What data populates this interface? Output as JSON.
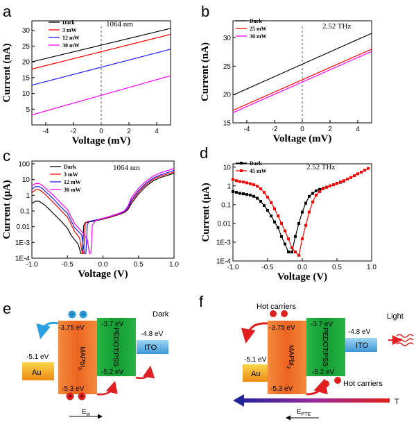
{
  "colors": {
    "Dark": "#000000",
    "3 mW": "#ff0000",
    "12 mW": "#1a1aff",
    "30 mW": "#ff00ff",
    "25 mW": "#ff0000",
    "45 mW": "#ff0000",
    "mapbi": "#ee6a2a",
    "pedot": "#1aaa3a",
    "ito": "#4aa8dc",
    "au": "#f3a71c",
    "arrow_red": "#e02020",
    "arrow_blue": "#2aa0e0",
    "ept_start": "#2020a0",
    "ept_end": "#e0201a"
  },
  "chart_data": [
    {
      "id": "a",
      "panel_label": "a",
      "type": "line",
      "xlabel": "Voltage (mV)",
      "ylabel": "Current (nA)",
      "xlim": [
        -5,
        5
      ],
      "ylim": [
        0,
        33
      ],
      "xticks": [
        -4,
        -2,
        0,
        2,
        4
      ],
      "yticks": [
        5,
        10,
        15,
        20,
        25,
        30
      ],
      "ytick_labels": [
        "5",
        "10",
        "15",
        "20",
        "25",
        "30"
      ],
      "annotation": "1064 nm",
      "dashed_zero": true,
      "series": [
        {
          "name": "Dark",
          "x": [
            -5,
            5
          ],
          "y": [
            20.0,
            30.6
          ]
        },
        {
          "name": "3 mW",
          "x": [
            -5,
            5
          ],
          "y": [
            17.7,
            28.7
          ]
        },
        {
          "name": "12 mW",
          "x": [
            -5,
            5
          ],
          "y": [
            12.6,
            24.0
          ]
        },
        {
          "name": "30 mW",
          "x": [
            -5,
            5
          ],
          "y": [
            3.2,
            15.6
          ]
        }
      ]
    },
    {
      "id": "b",
      "panel_label": "b",
      "type": "line",
      "xlabel": "Voltage (mV)",
      "ylabel": "Current (nA)",
      "xlim": [
        -5,
        5
      ],
      "ylim": [
        15,
        33
      ],
      "xticks": [
        -4,
        -2,
        0,
        2,
        4
      ],
      "yticks": [
        15,
        20,
        25,
        30
      ],
      "ytick_labels": [
        "15",
        "20",
        "25",
        "30"
      ],
      "annotation": "2.52 THz",
      "dashed_zero": true,
      "series": [
        {
          "name": "Dark",
          "x": [
            -5,
            5
          ],
          "y": [
            19.9,
            30.8
          ]
        },
        {
          "name": "25 mW",
          "x": [
            -5,
            5
          ],
          "y": [
            17.2,
            28.0
          ]
        },
        {
          "name": "30 mW",
          "x": [
            -5,
            5
          ],
          "y": [
            16.8,
            27.6
          ]
        }
      ]
    },
    {
      "id": "c",
      "panel_label": "c",
      "type": "line",
      "yscale": "log",
      "xlabel": "Voltage (V)",
      "ylabel": "Current (μA)",
      "xlim": [
        -1.0,
        1.0
      ],
      "ylim": [
        0.0001,
        150
      ],
      "xticks": [
        -1.0,
        -0.5,
        0.0,
        0.5,
        1.0
      ],
      "xtick_labels": [
        "-1.0",
        "-0.5",
        "0.0",
        "0.5",
        "1.0"
      ],
      "yticks": [
        0.0001,
        0.001,
        0.01,
        0.1,
        1,
        10,
        100
      ],
      "ytick_labels": [
        "1E-4",
        "1E-3",
        "0.01",
        "0.1",
        "1",
        "10",
        "100"
      ],
      "annotation": "1064 nm",
      "series": [
        {
          "name": "Dark",
          "x": [
            -1.0,
            -0.95,
            -0.9,
            -0.85,
            -0.8,
            -0.75,
            -0.7,
            -0.6,
            -0.5,
            -0.45,
            -0.4,
            -0.35,
            -0.31,
            -0.29,
            -0.27,
            -0.25,
            -0.2,
            -0.1,
            0.0,
            0.1,
            0.2,
            0.3,
            0.35,
            0.4,
            0.5,
            0.6,
            0.7,
            0.8,
            0.9,
            1.0
          ],
          "y": [
            0.3,
            0.42,
            0.42,
            0.3,
            0.2,
            0.12,
            0.07,
            0.025,
            0.008,
            0.003,
            0.0015,
            0.0008,
            0.0002,
            0.0002,
            0.012,
            0.018,
            0.02,
            0.024,
            0.03,
            0.04,
            0.055,
            0.08,
            0.12,
            0.3,
            1.2,
            3.5,
            8,
            13,
            18,
            25
          ]
        },
        {
          "name": "3 mW",
          "x": [
            -1.0,
            -0.95,
            -0.9,
            -0.85,
            -0.8,
            -0.75,
            -0.7,
            -0.6,
            -0.5,
            -0.45,
            -0.4,
            -0.33,
            -0.29,
            -0.27,
            -0.25,
            -0.23,
            -0.2,
            -0.1,
            0.0,
            0.1,
            0.2,
            0.3,
            0.35,
            0.4,
            0.5,
            0.6,
            0.7,
            0.8,
            0.9,
            1.0
          ],
          "y": [
            1.5,
            2.2,
            2.3,
            1.6,
            1.0,
            0.6,
            0.35,
            0.12,
            0.04,
            0.015,
            0.005,
            0.002,
            0.0002,
            0.0002,
            0.015,
            0.02,
            0.022,
            0.026,
            0.032,
            0.042,
            0.058,
            0.085,
            0.14,
            0.4,
            1.6,
            4.5,
            10,
            16,
            22,
            30
          ]
        },
        {
          "name": "12 mW",
          "x": [
            -1.0,
            -0.95,
            -0.9,
            -0.85,
            -0.8,
            -0.75,
            -0.7,
            -0.6,
            -0.5,
            -0.45,
            -0.4,
            -0.3,
            -0.26,
            -0.24,
            -0.22,
            -0.2,
            -0.15,
            -0.1,
            0.0,
            0.1,
            0.2,
            0.3,
            0.35,
            0.4,
            0.5,
            0.6,
            0.7,
            0.8,
            0.9,
            1.0
          ],
          "y": [
            2.5,
            3.5,
            3.6,
            2.6,
            1.6,
            1.0,
            0.6,
            0.2,
            0.07,
            0.025,
            0.009,
            0.003,
            0.0002,
            0.0002,
            0.014,
            0.02,
            0.024,
            0.027,
            0.034,
            0.045,
            0.062,
            0.09,
            0.16,
            0.5,
            2.0,
            5.5,
            12,
            19,
            27,
            38
          ]
        },
        {
          "name": "30 mW",
          "x": [
            -1.0,
            -0.95,
            -0.9,
            -0.85,
            -0.8,
            -0.75,
            -0.7,
            -0.6,
            -0.5,
            -0.45,
            -0.4,
            -0.3,
            -0.22,
            -0.19,
            -0.17,
            -0.15,
            -0.12,
            -0.1,
            0.0,
            0.1,
            0.2,
            0.3,
            0.35,
            0.4,
            0.5,
            0.6,
            0.7,
            0.8,
            0.9,
            1.0
          ],
          "y": [
            4.0,
            5.5,
            5.6,
            4.2,
            2.6,
            1.6,
            1.0,
            0.35,
            0.12,
            0.045,
            0.016,
            0.005,
            0.0015,
            0.0002,
            0.0002,
            0.012,
            0.02,
            0.025,
            0.034,
            0.046,
            0.065,
            0.1,
            0.2,
            0.7,
            2.8,
            7.5,
            16,
            26,
            36,
            50
          ]
        }
      ]
    },
    {
      "id": "d",
      "panel_label": "d",
      "type": "line",
      "yscale": "log",
      "markers": true,
      "xlabel": "Voltage (V)",
      "ylabel": "Current (μA)",
      "xlim": [
        -1.0,
        1.0
      ],
      "ylim": [
        0.0001,
        15
      ],
      "xticks": [
        -1.0,
        -0.5,
        0.0,
        0.5,
        1.0
      ],
      "xtick_labels": [
        "-1.0",
        "-0.5",
        "0.0",
        "0.5",
        "1.0"
      ],
      "yticks": [
        0.0001,
        0.001,
        0.01,
        0.1,
        1,
        10
      ],
      "ytick_labels": [
        "1E-4",
        "1E-3",
        "0.01",
        "0.1",
        "1",
        "10"
      ],
      "annotation": "2.52 THz",
      "series": [
        {
          "name": "Dark",
          "x": [
            -1.0,
            -0.95,
            -0.9,
            -0.85,
            -0.8,
            -0.75,
            -0.7,
            -0.65,
            -0.6,
            -0.55,
            -0.5,
            -0.45,
            -0.4,
            -0.35,
            -0.3,
            -0.25,
            -0.2,
            -0.15,
            -0.1,
            -0.05,
            0.0,
            0.05,
            0.1,
            0.15,
            0.2,
            0.25,
            0.3,
            0.35,
            0.4,
            0.45,
            0.5,
            0.55,
            0.6
          ],
          "y": [
            0.5,
            0.45,
            0.4,
            0.38,
            0.35,
            0.32,
            0.28,
            0.22,
            0.15,
            0.09,
            0.05,
            0.025,
            0.012,
            0.006,
            0.002,
            0.0008,
            0.0003,
            0.0003,
            0.002,
            0.01,
            0.04,
            0.12,
            0.28,
            0.4,
            0.55,
            0.65,
            0.75,
            0.85,
            1.0,
            1.15,
            1.35,
            1.55,
            1.8
          ]
        },
        {
          "name": "45 mW",
          "x": [
            -1.0,
            -0.95,
            -0.9,
            -0.85,
            -0.8,
            -0.75,
            -0.7,
            -0.65,
            -0.6,
            -0.55,
            -0.5,
            -0.45,
            -0.4,
            -0.35,
            -0.3,
            -0.25,
            -0.2,
            -0.15,
            -0.1,
            -0.05,
            0.0,
            0.05,
            0.1,
            0.15,
            0.2,
            0.25,
            0.3,
            0.35,
            0.4,
            0.45,
            0.5,
            0.55,
            0.6,
            0.65,
            0.7,
            0.75,
            0.8,
            0.85,
            0.9,
            0.95
          ],
          "y": [
            2.2,
            1.9,
            1.7,
            1.6,
            1.45,
            1.3,
            1.15,
            0.95,
            0.7,
            0.45,
            0.25,
            0.13,
            0.06,
            0.025,
            0.01,
            0.004,
            0.0015,
            0.0005,
            0.0003,
            0.0002,
            0.0015,
            0.008,
            0.04,
            0.14,
            0.32,
            0.5,
            0.7,
            0.85,
            1.0,
            1.15,
            1.35,
            1.6,
            1.9,
            2.3,
            2.8,
            3.5,
            4.4,
            5.4,
            6.8,
            8.5
          ]
        }
      ]
    }
  ],
  "schematic_e": {
    "panel_label": "e",
    "dark_label": "Dark",
    "mapbi_top": "-3.75 eV",
    "mapbi_name": "MAPbI",
    "mapbi_sub": "3",
    "mapbi_bottom": "-5.3 eV",
    "pedot_top": "-3.7 eV",
    "pedot_name": "PEDOT:PSS",
    "pedot_bottom": "-5.2 eV",
    "ito_energy": "-4.8 eV",
    "ito_name": "ITO",
    "au_energy": "-5.1 eV",
    "au_name": "Au",
    "electron_symbol": "−",
    "hole_symbol": "+",
    "field_label": "E",
    "field_sub": "in"
  },
  "schematic_f": {
    "panel_label": "f",
    "hot_carriers_top": "Hot carriers",
    "hot_carriers_bottom": "Hot carriers",
    "light_label": "Light",
    "mapbi_top": "-3.75 eV",
    "mapbi_name": "MAPbI",
    "mapbi_sub": "3",
    "mapbi_bottom": "-5.3 eV",
    "pedot_top": "-3.7 eV",
    "pedot_name": "PEDOT:PSS",
    "pedot_bottom": "-5.2 eV",
    "ito_energy": "-4.8 eV",
    "ito_name": "ITO",
    "au_energy": "-5.1 eV",
    "au_name": "Au",
    "t_label": "T",
    "field_label": "E",
    "field_sub": "PTE"
  }
}
